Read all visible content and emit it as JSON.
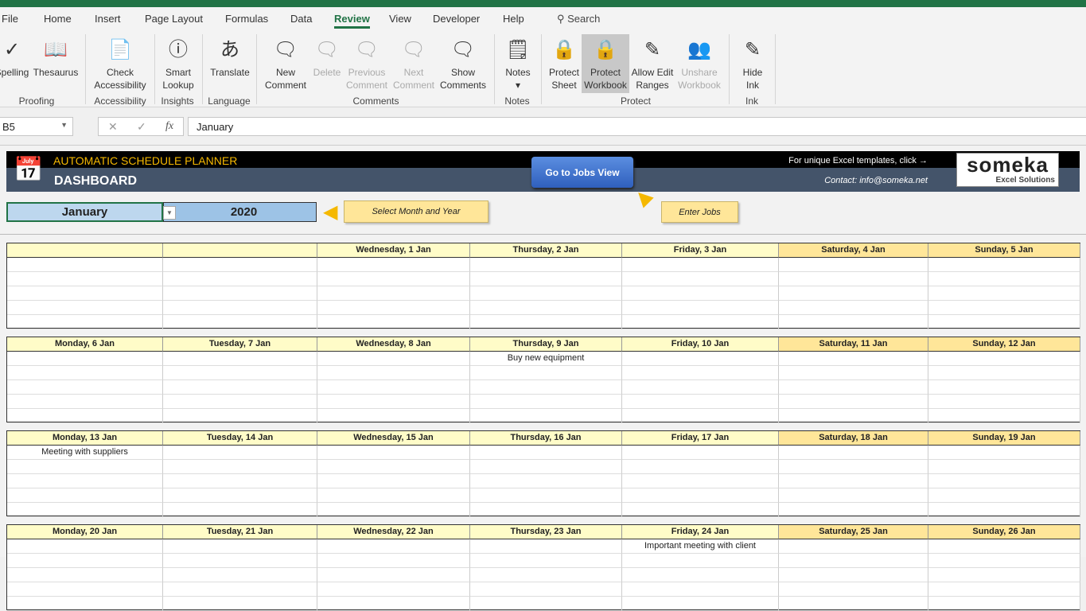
{
  "ribbon_tabs": [
    "File",
    "Home",
    "Insert",
    "Page Layout",
    "Formulas",
    "Data",
    "Review",
    "View",
    "Developer",
    "Help"
  ],
  "active_tab": "Review",
  "search_label": "Search",
  "buttons": [
    {
      "l1": "Spelling",
      "l2": "",
      "icon": "spelling-icon"
    },
    {
      "l1": "Thesaurus",
      "l2": "",
      "icon": "thesaurus-icon"
    },
    {
      "l1": "Check",
      "l2": "Accessibility",
      "icon": "accessibility-icon"
    },
    {
      "l1": "Smart",
      "l2": "Lookup",
      "icon": "smart-lookup-icon"
    },
    {
      "l1": "Translate",
      "l2": "",
      "icon": "translate-icon"
    },
    {
      "l1": "New",
      "l2": "Comment",
      "icon": "new-comment-icon"
    },
    {
      "l1": "Delete",
      "l2": "",
      "icon": "delete-comment-icon",
      "disabled": true
    },
    {
      "l1": "Previous",
      "l2": "Comment",
      "icon": "previous-comment-icon",
      "disabled": true
    },
    {
      "l1": "Next",
      "l2": "Comment",
      "icon": "next-comment-icon",
      "disabled": true
    },
    {
      "l1": "Show",
      "l2": "Comments",
      "icon": "show-comments-icon"
    },
    {
      "l1": "Notes",
      "l2": "▾",
      "icon": "notes-icon"
    },
    {
      "l1": "Protect",
      "l2": "Sheet",
      "icon": "protect-sheet-icon"
    },
    {
      "l1": "Protect",
      "l2": "Workbook",
      "icon": "protect-workbook-icon",
      "selected": true
    },
    {
      "l1": "Allow Edit",
      "l2": "Ranges",
      "icon": "allow-edit-ranges-icon"
    },
    {
      "l1": "Unshare",
      "l2": "Workbook",
      "icon": "unshare-workbook-icon",
      "disabled": true
    },
    {
      "l1": "Hide",
      "l2": "Ink",
      "icon": "hide-ink-icon"
    }
  ],
  "groups": [
    "Proofing",
    "Accessibility",
    "Insights",
    "Language",
    "Comments",
    "Notes",
    "Protect",
    "Ink"
  ],
  "formula_bar": {
    "name_box": "B5",
    "cancel": "✕",
    "enter": "✓",
    "fx": "fx",
    "value": "January"
  },
  "header": {
    "title": "AUTOMATIC SCHEDULE PLANNER",
    "subtitle": "DASHBOARD",
    "jobs_button": "Go to Jobs View",
    "promo": "For unique Excel templates, click →",
    "contact": "Contact: info@someka.net",
    "logo_main": "someka",
    "logo_sub": "Excel Solutions"
  },
  "selector": {
    "month": "January",
    "year": "2020",
    "hint": "Select Month and Year",
    "jobs_hint": "Enter Jobs"
  },
  "weeks": [
    {
      "days": [
        "",
        "",
        "Wednesday, 1 Jan",
        "Thursday, 2 Jan",
        "Friday, 3 Jan",
        "Saturday, 4 Jan",
        "Sunday, 5 Jan"
      ],
      "events": []
    },
    {
      "days": [
        "Monday, 6 Jan",
        "Tuesday, 7 Jan",
        "Wednesday, 8 Jan",
        "Thursday, 9 Jan",
        "Friday, 10 Jan",
        "Saturday, 11 Jan",
        "Sunday, 12 Jan"
      ],
      "events": [
        {
          "day": 3,
          "text": "Buy new equipment"
        }
      ]
    },
    {
      "days": [
        "Monday, 13 Jan",
        "Tuesday, 14 Jan",
        "Wednesday, 15 Jan",
        "Thursday, 16 Jan",
        "Friday, 17 Jan",
        "Saturday, 18 Jan",
        "Sunday, 19 Jan"
      ],
      "events": [
        {
          "day": 0,
          "text": "Meeting with suppliers"
        }
      ]
    },
    {
      "days": [
        "Monday, 20 Jan",
        "Tuesday, 21 Jan",
        "Wednesday, 22 Jan",
        "Thursday, 23 Jan",
        "Friday, 24 Jan",
        "Saturday, 25 Jan",
        "Sunday, 26 Jan"
      ],
      "events": [
        {
          "day": 4,
          "text": "Important meeting with client"
        }
      ]
    }
  ],
  "colors": {
    "excel_green": "#217346",
    "weekday_header": "#fffcc8",
    "weekend_header": "#ffe699",
    "banner": "#44546a"
  }
}
